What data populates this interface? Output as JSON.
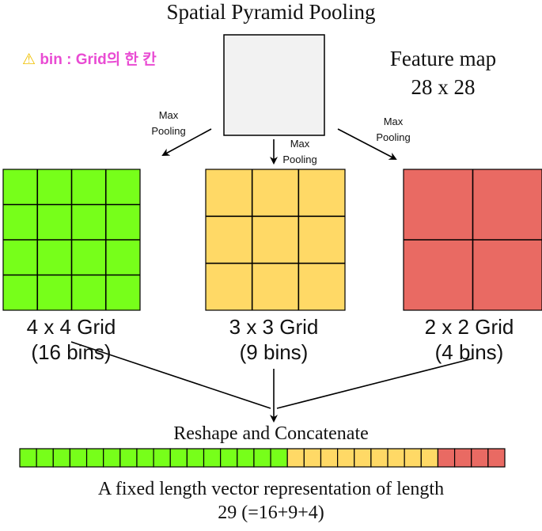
{
  "title": "Spatial Pyramid Pooling",
  "note": {
    "icon": "warning-icon",
    "text": "bin : Grid의 한 칸"
  },
  "feature_map": {
    "line1": "Feature map",
    "line2": "28 x 28"
  },
  "pooling_label": {
    "line1": "Max",
    "line2": "Pooling"
  },
  "grids": [
    {
      "rows": 4,
      "cols": 4,
      "color": "#77ff1a",
      "label_line1": "4 x 4 Grid",
      "label_line2": "(16 bins)"
    },
    {
      "rows": 3,
      "cols": 3,
      "color": "#ffd966",
      "label_line1": "3 x 3 Grid",
      "label_line2": "(9 bins)"
    },
    {
      "rows": 2,
      "cols": 2,
      "color": "#e96a63",
      "label_line1": "2 x 2 Grid",
      "label_line2": "(4 bins)"
    }
  ],
  "reshape_label": "Reshape and Concatenate",
  "vector": {
    "segments": [
      16,
      9,
      4
    ]
  },
  "caption": {
    "line1": "A fixed length vector representation of length",
    "line2": "29 (=16+9+4)"
  },
  "colors": {
    "feature_map": "#f2f2f2",
    "stroke": "#000000"
  }
}
